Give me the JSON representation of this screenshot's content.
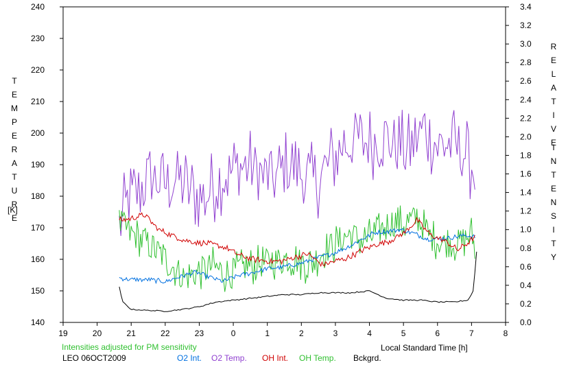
{
  "chart_data": {
    "type": "line",
    "x_ticks": [
      "19",
      "20",
      "21",
      "22",
      "23",
      "0",
      "1",
      "2",
      "3",
      "4",
      "5",
      "6",
      "7",
      "8"
    ],
    "y_left_ticks": [
      "140",
      "150",
      "160",
      "170",
      "180",
      "190",
      "200",
      "210",
      "220",
      "230",
      "240"
    ],
    "y_right_ticks": [
      "0.0",
      "0.2",
      "0.4",
      "0.6",
      "0.8",
      "1.0",
      "1.2",
      "1.4",
      "1.6",
      "1.8",
      "2.0",
      "2.2",
      "2.4",
      "2.6",
      "2.8",
      "3.0",
      "3.2",
      "3.4"
    ],
    "y_left_range": [
      140,
      240
    ],
    "y_right_range": [
      0.0,
      3.4
    ],
    "x_range_hours_since_19": [
      0,
      13
    ],
    "ylabel_left_letters": [
      "T",
      "E",
      "M",
      "P",
      "E",
      "R",
      "A",
      "T",
      "U",
      "R",
      "E"
    ],
    "ylabel_left_unit": "[K]",
    "ylabel_right_letters_1": [
      "R",
      "E",
      "L",
      "A",
      "T",
      "I",
      "V",
      "E"
    ],
    "ylabel_right_letters_2": [
      "I",
      "N",
      "T",
      "E",
      "N",
      "S",
      "I",
      "T",
      "Y"
    ],
    "xlabel": "Local Standard Time [h]",
    "note": "Intensities adjusted for PM sensitivity",
    "station": "LEO 06OCT2009",
    "grid": false,
    "series": [
      {
        "name": "O2 Int.",
        "axis": "right",
        "color": "#0070e0",
        "points": [
          [
            1.65,
            0.48
          ],
          [
            2.0,
            0.46
          ],
          [
            2.5,
            0.46
          ],
          [
            3.0,
            0.44
          ],
          [
            3.5,
            0.5
          ],
          [
            3.9,
            0.54
          ],
          [
            4.3,
            0.49
          ],
          [
            4.7,
            0.44
          ],
          [
            5.1,
            0.5
          ],
          [
            5.5,
            0.53
          ],
          [
            6.0,
            0.58
          ],
          [
            6.5,
            0.6
          ],
          [
            7.0,
            0.64
          ],
          [
            7.5,
            0.7
          ],
          [
            7.9,
            0.74
          ],
          [
            8.3,
            0.8
          ],
          [
            8.7,
            0.88
          ],
          [
            9.1,
            0.96
          ],
          [
            9.5,
            0.98
          ],
          [
            9.9,
            1.0
          ],
          [
            10.3,
            0.96
          ],
          [
            10.7,
            0.9
          ],
          [
            11.1,
            0.9
          ],
          [
            11.5,
            0.92
          ],
          [
            11.8,
            0.94
          ],
          [
            12.1,
            0.92
          ]
        ]
      },
      {
        "name": "O2 Temp.",
        "axis": "left",
        "color": "#9040d0",
        "points": [
          [
            1.65,
            171
          ],
          [
            1.9,
            178
          ],
          [
            2.2,
            182
          ],
          [
            2.6,
            186
          ],
          [
            3.0,
            184
          ],
          [
            3.4,
            186
          ],
          [
            3.8,
            181
          ],
          [
            4.2,
            180
          ],
          [
            4.6,
            186
          ],
          [
            5.0,
            188
          ],
          [
            5.4,
            190
          ],
          [
            5.8,
            187
          ],
          [
            6.2,
            185
          ],
          [
            6.6,
            190
          ],
          [
            7.0,
            187
          ],
          [
            7.4,
            184
          ],
          [
            7.8,
            190
          ],
          [
            8.2,
            196
          ],
          [
            8.6,
            198
          ],
          [
            9.0,
            197
          ],
          [
            9.4,
            199
          ],
          [
            9.8,
            196
          ],
          [
            10.2,
            194
          ],
          [
            10.6,
            202
          ],
          [
            11.0,
            196
          ],
          [
            11.4,
            197
          ],
          [
            11.8,
            194
          ],
          [
            12.1,
            188
          ]
        ]
      },
      {
        "name": "OH Int.",
        "axis": "right",
        "color": "#d00000",
        "points": [
          [
            1.65,
            1.1
          ],
          [
            2.0,
            1.12
          ],
          [
            2.4,
            1.16
          ],
          [
            2.8,
            1.0
          ],
          [
            3.2,
            0.94
          ],
          [
            3.6,
            0.88
          ],
          [
            4.0,
            0.86
          ],
          [
            4.4,
            0.84
          ],
          [
            4.8,
            0.8
          ],
          [
            5.2,
            0.72
          ],
          [
            5.6,
            0.68
          ],
          [
            6.0,
            0.66
          ],
          [
            6.4,
            0.66
          ],
          [
            6.8,
            0.7
          ],
          [
            7.2,
            0.74
          ],
          [
            7.6,
            0.62
          ],
          [
            8.0,
            0.66
          ],
          [
            8.4,
            0.7
          ],
          [
            8.8,
            0.78
          ],
          [
            9.2,
            0.84
          ],
          [
            9.6,
            0.88
          ],
          [
            10.0,
            0.96
          ],
          [
            10.4,
            1.1
          ],
          [
            10.8,
            0.94
          ],
          [
            11.2,
            0.88
          ],
          [
            11.6,
            0.78
          ],
          [
            11.9,
            0.86
          ],
          [
            12.1,
            0.92
          ]
        ]
      },
      {
        "name": "OH Temp.",
        "axis": "left",
        "color": "#30c030",
        "points": [
          [
            1.65,
            172
          ],
          [
            2.0,
            168
          ],
          [
            2.4,
            166
          ],
          [
            2.8,
            162
          ],
          [
            3.2,
            158
          ],
          [
            3.6,
            154
          ],
          [
            4.0,
            156
          ],
          [
            4.4,
            158
          ],
          [
            4.8,
            155
          ],
          [
            5.2,
            157
          ],
          [
            5.6,
            158
          ],
          [
            6.0,
            159
          ],
          [
            6.4,
            160
          ],
          [
            6.8,
            160
          ],
          [
            7.2,
            158
          ],
          [
            7.6,
            162
          ],
          [
            8.0,
            165
          ],
          [
            8.4,
            168
          ],
          [
            8.8,
            166
          ],
          [
            9.2,
            168
          ],
          [
            9.6,
            172
          ],
          [
            10.0,
            171
          ],
          [
            10.4,
            173
          ],
          [
            10.8,
            167
          ],
          [
            11.2,
            165
          ],
          [
            11.6,
            165
          ],
          [
            12.0,
            168
          ],
          [
            12.1,
            163
          ]
        ]
      },
      {
        "name": "Bckgrd.",
        "axis": "right",
        "color": "#000000",
        "points": [
          [
            1.65,
            0.38
          ],
          [
            1.75,
            0.22
          ],
          [
            2.0,
            0.14
          ],
          [
            2.5,
            0.13
          ],
          [
            3.0,
            0.12
          ],
          [
            3.5,
            0.14
          ],
          [
            4.0,
            0.17
          ],
          [
            4.5,
            0.22
          ],
          [
            5.0,
            0.24
          ],
          [
            5.5,
            0.26
          ],
          [
            6.0,
            0.28
          ],
          [
            6.5,
            0.3
          ],
          [
            7.0,
            0.3
          ],
          [
            7.5,
            0.32
          ],
          [
            8.0,
            0.32
          ],
          [
            8.5,
            0.32
          ],
          [
            9.0,
            0.34
          ],
          [
            9.5,
            0.26
          ],
          [
            10.0,
            0.24
          ],
          [
            10.5,
            0.24
          ],
          [
            11.0,
            0.22
          ],
          [
            11.5,
            0.22
          ],
          [
            11.9,
            0.24
          ],
          [
            12.05,
            0.34
          ],
          [
            12.15,
            0.76
          ]
        ]
      }
    ]
  }
}
